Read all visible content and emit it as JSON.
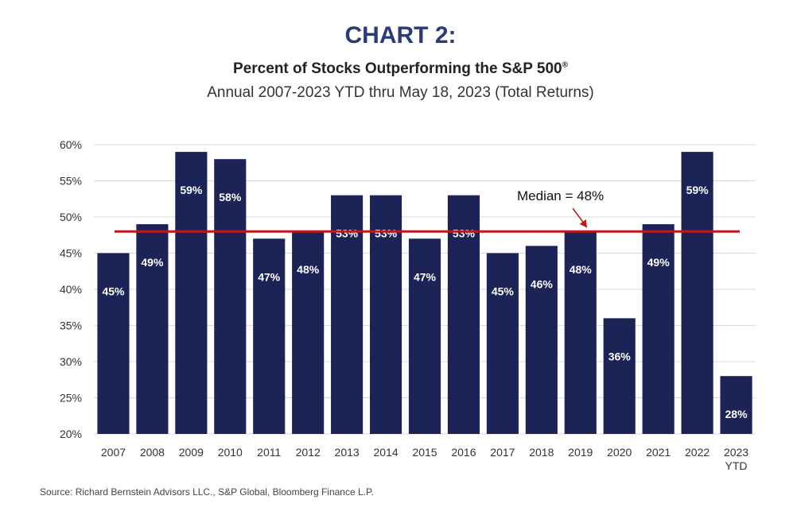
{
  "header": {
    "chart_number": "CHART 2:",
    "title": "Percent of Stocks Outperforming the S&P 500",
    "title_mark": "®",
    "subtitle": "Annual 2007-2023 YTD thru May 18, 2023 (Total Returns)"
  },
  "source": "Source:  Richard Bernstein Advisors LLC., S&P Global, Bloomberg Finance L.P.",
  "chart_data": {
    "type": "bar",
    "categories": [
      "2007",
      "2008",
      "2009",
      "2010",
      "2011",
      "2012",
      "2013",
      "2014",
      "2015",
      "2016",
      "2017",
      "2018",
      "2019",
      "2020",
      "2021",
      "2022",
      "2023\nYTD"
    ],
    "values": [
      45,
      49,
      59,
      58,
      47,
      48,
      53,
      53,
      47,
      53,
      45,
      46,
      48,
      36,
      49,
      59,
      28
    ],
    "data_labels": [
      "45%",
      "49%",
      "59%",
      "58%",
      "47%",
      "48%",
      "53%",
      "53%",
      "47%",
      "53%",
      "45%",
      "46%",
      "48%",
      "36%",
      "49%",
      "59%",
      "28%"
    ],
    "ylim": [
      20,
      60
    ],
    "yticks": [
      20,
      25,
      30,
      35,
      40,
      45,
      50,
      55,
      60
    ],
    "ytick_labels": [
      "20%",
      "25%",
      "30%",
      "35%",
      "40%",
      "45%",
      "50%",
      "55%",
      "60%"
    ],
    "grid": true,
    "median": {
      "value": 48,
      "label": "Median = 48%"
    },
    "colors": {
      "bar": "#1c2457",
      "median_line": "#c0171e",
      "grid": "#d9d9d9",
      "label_text": "#ffffff"
    }
  }
}
